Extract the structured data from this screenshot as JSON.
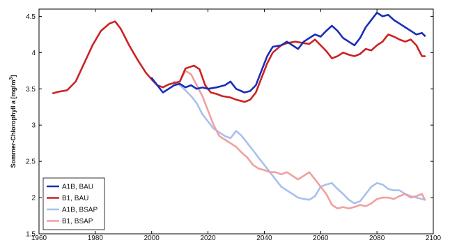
{
  "chart_data": {
    "type": "line",
    "title": "",
    "xlabel": "",
    "ylabel": "Sommer-Chlorophyll a [mg/m",
    "ylabel_sup": "3",
    "ylabel_end": "]",
    "xlim": [
      1960,
      2100
    ],
    "ylim": [
      1.5,
      4.6
    ],
    "x_ticks": [
      1960,
      1980,
      2000,
      2020,
      2040,
      2060,
      2080,
      2100
    ],
    "y_ticks": [
      1.5,
      2,
      2.5,
      3,
      3.5,
      4,
      4.5
    ],
    "x_tick_labels": [
      "1960",
      "1980",
      "2000",
      "2020",
      "2040",
      "2060",
      "2080",
      "2100"
    ],
    "y_tick_labels": [
      "1.5",
      "2",
      "2.5",
      "3",
      "3.5",
      "4",
      "4.5"
    ],
    "grid": false,
    "legend_position": "bottom-left",
    "series": [
      {
        "name": "B1, BAU",
        "color": "#cc2222",
        "x": [
          1965,
          1967,
          1970,
          1973,
          1976,
          1979,
          1982,
          1985,
          1987,
          1989,
          1992,
          1995,
          1998,
          2000,
          2002,
          2004,
          2006,
          2008,
          2010,
          2012,
          2015,
          2017,
          2019,
          2021,
          2023,
          2025,
          2028,
          2030,
          2033,
          2035,
          2037,
          2039,
          2041,
          2043,
          2046,
          2048,
          2051,
          2054,
          2056,
          2058,
          2060,
          2062,
          2064,
          2066,
          2068,
          2070,
          2072,
          2074,
          2076,
          2078,
          2080,
          2082,
          2084,
          2086,
          2088,
          2090,
          2092,
          2094,
          2096,
          2097
        ],
        "values": [
          3.44,
          3.46,
          3.48,
          3.6,
          3.85,
          4.1,
          4.3,
          4.4,
          4.43,
          4.33,
          4.1,
          3.9,
          3.72,
          3.63,
          3.55,
          3.52,
          3.56,
          3.58,
          3.6,
          3.78,
          3.82,
          3.77,
          3.55,
          3.45,
          3.43,
          3.4,
          3.38,
          3.35,
          3.32,
          3.35,
          3.45,
          3.65,
          3.85,
          4.0,
          4.1,
          4.13,
          4.15,
          4.13,
          4.12,
          4.18,
          4.1,
          4.02,
          3.92,
          3.95,
          4.0,
          3.97,
          3.95,
          3.98,
          4.05,
          4.03,
          4.1,
          4.15,
          4.25,
          4.22,
          4.18,
          4.15,
          4.18,
          4.1,
          3.95,
          3.95
        ]
      },
      {
        "name": "A1B, BAU",
        "color": "#1a2db8",
        "x": [
          2000,
          2002,
          2004,
          2006,
          2008,
          2010,
          2012,
          2014,
          2016,
          2018,
          2020,
          2023,
          2026,
          2028,
          2030,
          2033,
          2035,
          2037,
          2039,
          2041,
          2043,
          2046,
          2048,
          2050,
          2052,
          2054,
          2056,
          2058,
          2060,
          2062,
          2064,
          2066,
          2068,
          2070,
          2072,
          2074,
          2076,
          2078,
          2080,
          2082,
          2084,
          2086,
          2088,
          2090,
          2092,
          2094,
          2096,
          2097
        ],
        "values": [
          3.65,
          3.55,
          3.45,
          3.5,
          3.55,
          3.57,
          3.52,
          3.55,
          3.5,
          3.52,
          3.5,
          3.52,
          3.55,
          3.6,
          3.5,
          3.45,
          3.47,
          3.55,
          3.75,
          3.95,
          4.08,
          4.1,
          4.15,
          4.1,
          4.05,
          4.15,
          4.2,
          4.25,
          4.22,
          4.3,
          4.37,
          4.3,
          4.2,
          4.15,
          4.1,
          4.2,
          4.35,
          4.45,
          4.55,
          4.5,
          4.52,
          4.45,
          4.4,
          4.35,
          4.3,
          4.25,
          4.27,
          4.23
        ]
      },
      {
        "name": "A1B, BSAP",
        "color": "#a8c0ee",
        "x": [
          2008,
          2010,
          2012,
          2014,
          2016,
          2018,
          2020,
          2022,
          2024,
          2026,
          2028,
          2030,
          2032,
          2034,
          2036,
          2038,
          2040,
          2042,
          2044,
          2046,
          2048,
          2050,
          2052,
          2054,
          2056,
          2058,
          2060,
          2062,
          2064,
          2066,
          2068,
          2070,
          2072,
          2074,
          2076,
          2078,
          2080,
          2082,
          2084,
          2086,
          2088,
          2090,
          2092,
          2094,
          2096,
          2097
        ],
        "values": [
          3.6,
          3.55,
          3.48,
          3.4,
          3.3,
          3.15,
          3.05,
          2.95,
          2.9,
          2.85,
          2.82,
          2.92,
          2.85,
          2.75,
          2.65,
          2.55,
          2.45,
          2.35,
          2.25,
          2.15,
          2.1,
          2.05,
          2.0,
          1.98,
          1.97,
          2.02,
          2.15,
          2.18,
          2.2,
          2.12,
          2.05,
          1.97,
          1.92,
          1.95,
          2.05,
          2.15,
          2.2,
          2.18,
          2.12,
          2.1,
          2.1,
          2.05,
          2.02,
          2.0,
          1.98,
          1.97
        ]
      },
      {
        "name": "B1, BSAP",
        "color": "#f0a0a0",
        "x": [
          2008,
          2010,
          2012,
          2014,
          2016,
          2018,
          2020,
          2022,
          2024,
          2026,
          2028,
          2030,
          2032,
          2034,
          2036,
          2038,
          2040,
          2042,
          2044,
          2046,
          2048,
          2050,
          2052,
          2054,
          2056,
          2058,
          2060,
          2062,
          2064,
          2066,
          2068,
          2070,
          2072,
          2074,
          2076,
          2078,
          2080,
          2082,
          2084,
          2086,
          2088,
          2090,
          2092,
          2094,
          2096,
          2097
        ],
        "values": [
          3.55,
          3.6,
          3.75,
          3.7,
          3.55,
          3.4,
          3.2,
          3.0,
          2.85,
          2.8,
          2.75,
          2.7,
          2.62,
          2.55,
          2.45,
          2.4,
          2.38,
          2.35,
          2.35,
          2.32,
          2.35,
          2.3,
          2.25,
          2.3,
          2.35,
          2.25,
          2.15,
          2.05,
          1.9,
          1.85,
          1.87,
          1.85,
          1.87,
          1.9,
          1.88,
          1.92,
          1.98,
          2.0,
          2.0,
          1.98,
          2.02,
          2.05,
          2.0,
          2.02,
          2.05,
          1.97
        ]
      }
    ],
    "legend_order": [
      1,
      0,
      2,
      3
    ]
  }
}
